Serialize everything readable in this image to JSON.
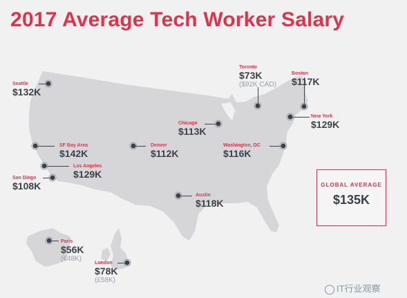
{
  "title": "2017 Average Tech Worker Salary",
  "global": {
    "label": "GLOBAL AVERAGE",
    "value": "$135K"
  },
  "cities": [
    {
      "id": "seattle",
      "name": "Seattle",
      "value": "$132K"
    },
    {
      "id": "sf",
      "name": "SF Bay Area",
      "value": "$142K"
    },
    {
      "id": "la",
      "name": "Los Angeles",
      "value": "$129K"
    },
    {
      "id": "sd",
      "name": "San Diego",
      "value": "$108K"
    },
    {
      "id": "denver",
      "name": "Denver",
      "value": "$112K"
    },
    {
      "id": "chicago",
      "name": "Chicago",
      "value": "$113K"
    },
    {
      "id": "austin",
      "name": "Austin",
      "value": "$118K"
    },
    {
      "id": "toronto",
      "name": "Toronto",
      "value": "$73K",
      "alt": "($92K CAD)"
    },
    {
      "id": "boston",
      "name": "Boston",
      "value": "$117K"
    },
    {
      "id": "ny",
      "name": "New York",
      "value": "$129K"
    },
    {
      "id": "dc",
      "name": "Washington, DC",
      "value": "$116K"
    },
    {
      "id": "paris",
      "name": "Paris",
      "value": "$56K",
      "alt": "(€48K)"
    },
    {
      "id": "london",
      "name": "London",
      "value": "$78K",
      "alt": "(£58K)"
    }
  ],
  "watermark": "IT行业观察",
  "colors": {
    "accent": "#e0334b",
    "text": "#3b4149",
    "land": "#d6d6d8",
    "background": "#f1f1f2"
  }
}
